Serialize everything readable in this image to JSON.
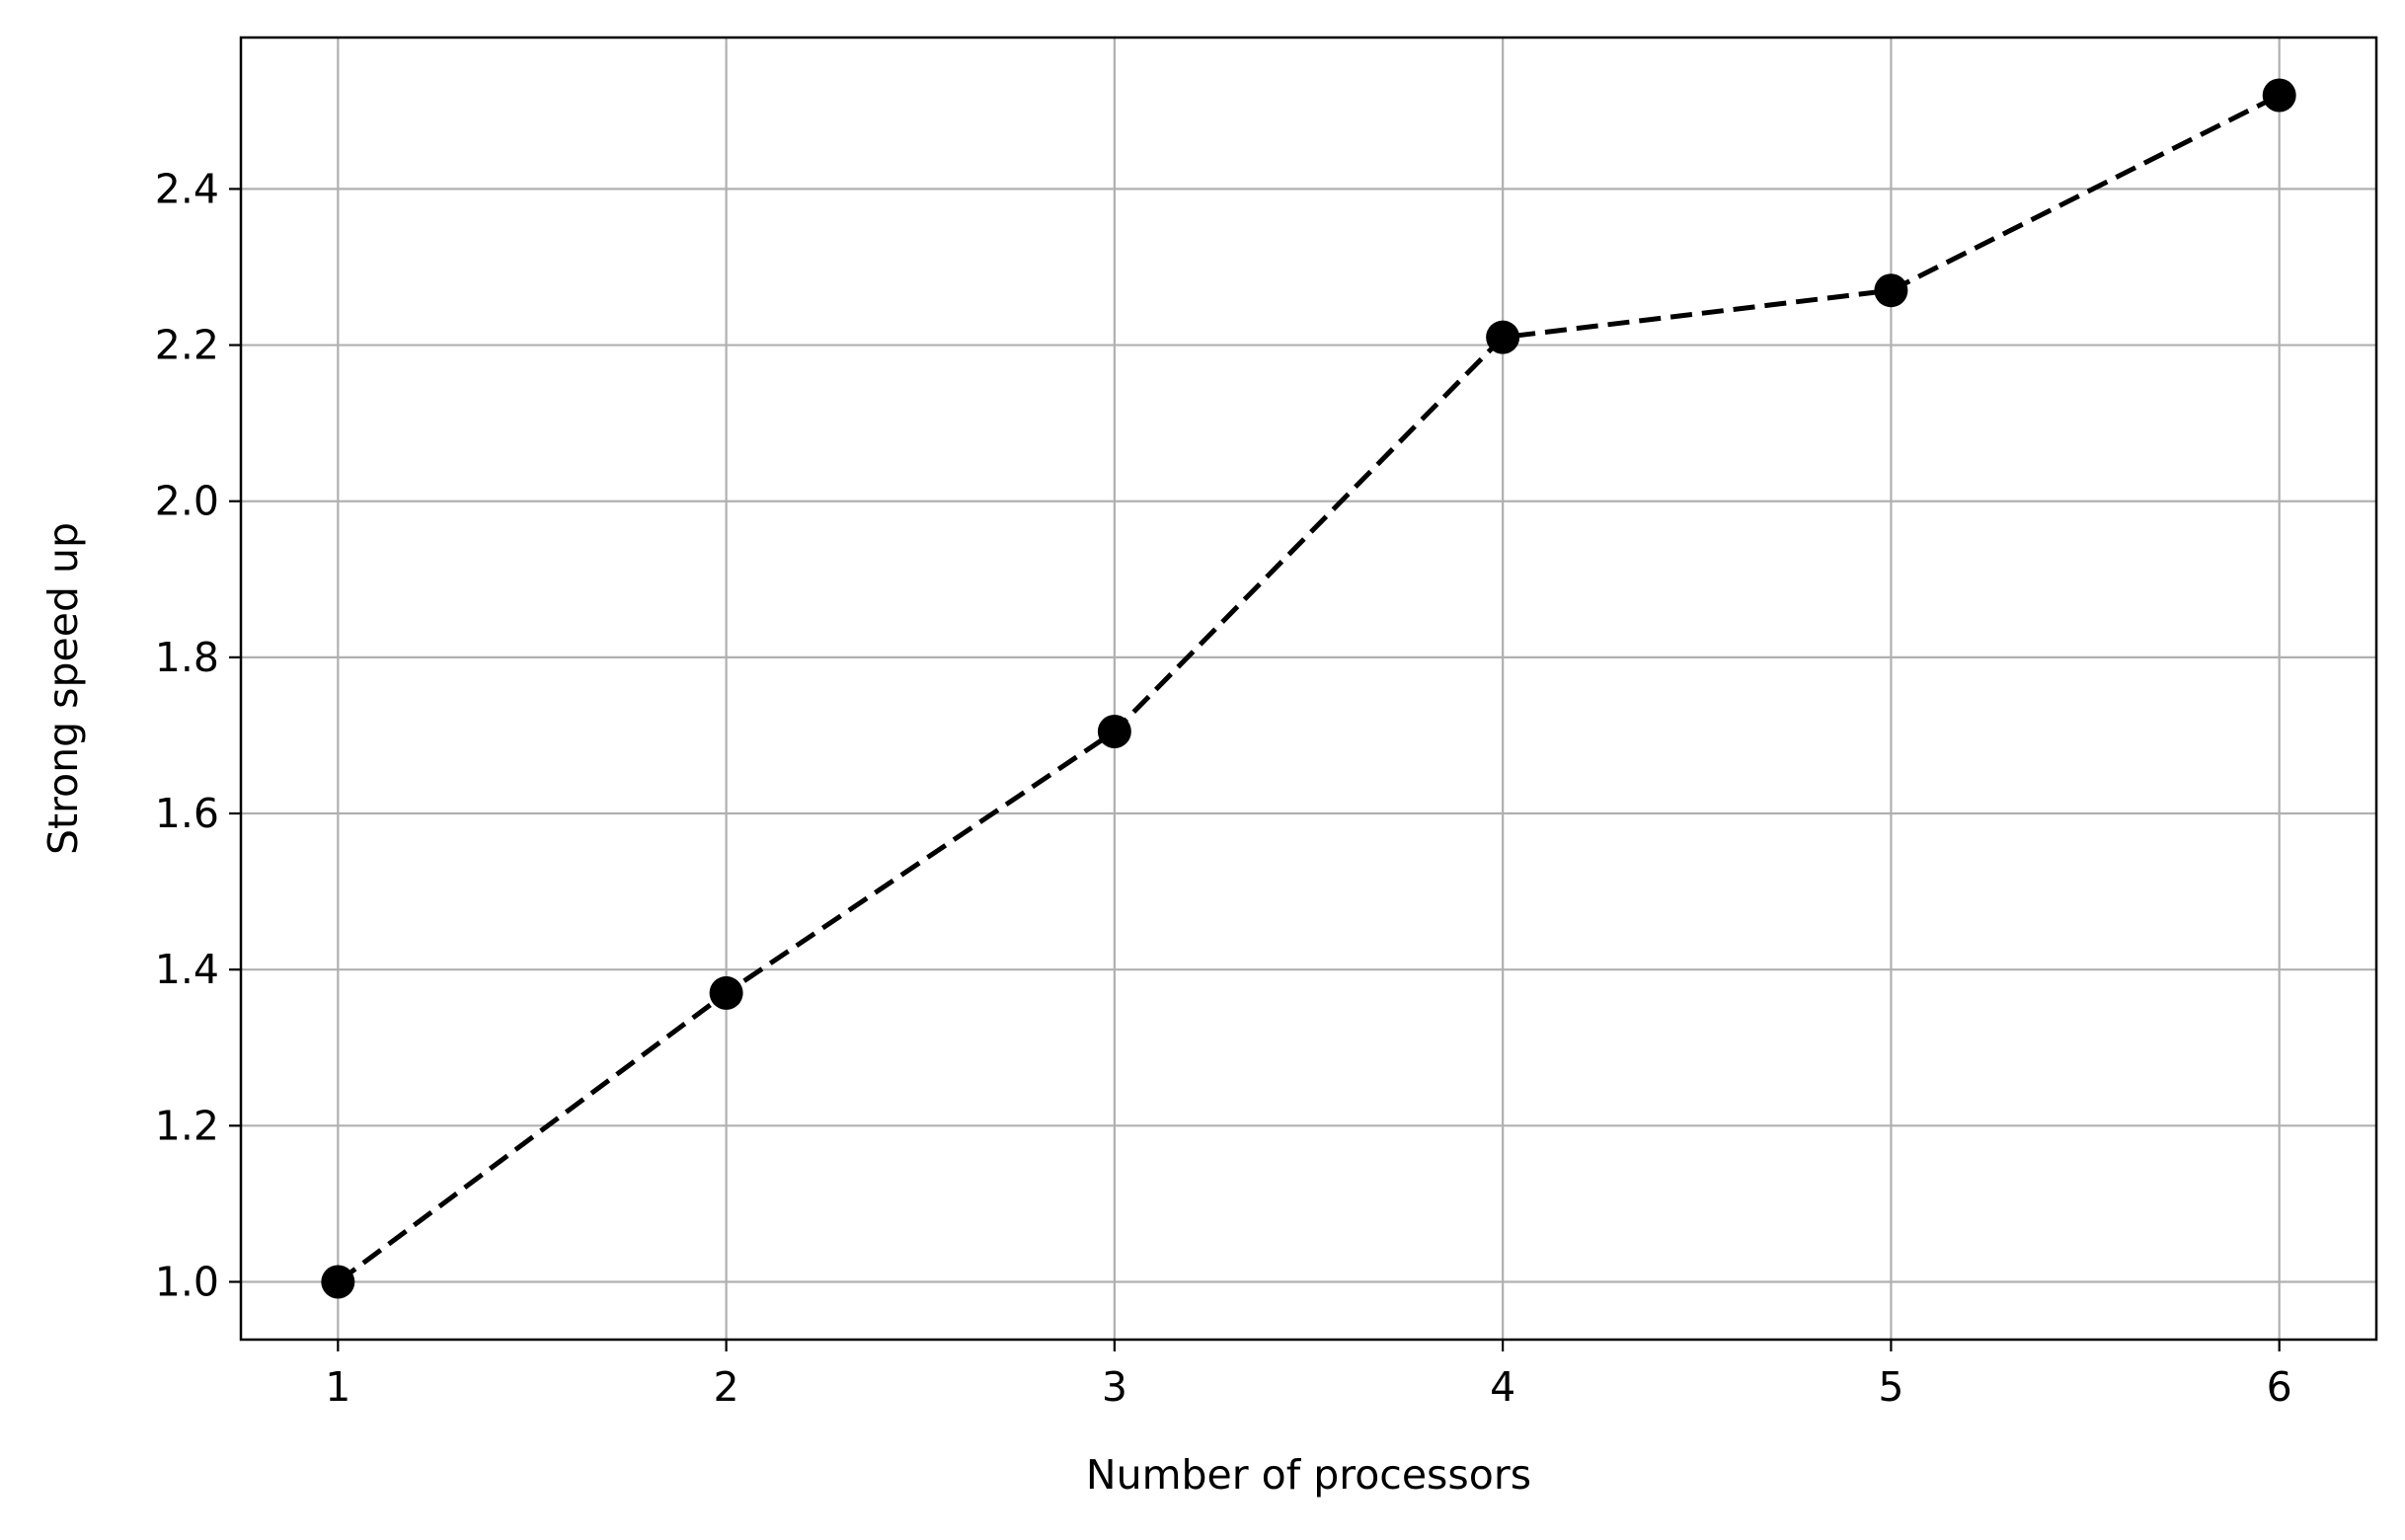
{
  "chart_data": {
    "type": "line",
    "title": "",
    "xlabel": "Number of processors",
    "ylabel": "Strong speed up",
    "x": [
      1,
      2,
      3,
      4,
      5,
      6
    ],
    "series": [
      {
        "values": [
          1.0,
          1.37,
          1.705,
          2.21,
          2.27,
          2.52
        ],
        "line_style": "dashed",
        "marker": "circle",
        "color": "#000000"
      }
    ],
    "xlim": [
      0.75,
      6.25
    ],
    "ylim": [
      0.926,
      2.594
    ],
    "xticks": [
      1,
      2,
      3,
      4,
      5,
      6
    ],
    "xtick_labels": [
      "1",
      "2",
      "3",
      "4",
      "5",
      "6"
    ],
    "yticks": [
      1.0,
      1.2,
      1.4,
      1.6,
      1.8,
      2.0,
      2.2,
      2.4
    ],
    "ytick_labels": [
      "1.0",
      "1.2",
      "1.4",
      "1.6",
      "1.8",
      "2.0",
      "2.2",
      "2.4"
    ],
    "grid": true,
    "grid_color": "#b0b0b0",
    "legend": "none"
  }
}
